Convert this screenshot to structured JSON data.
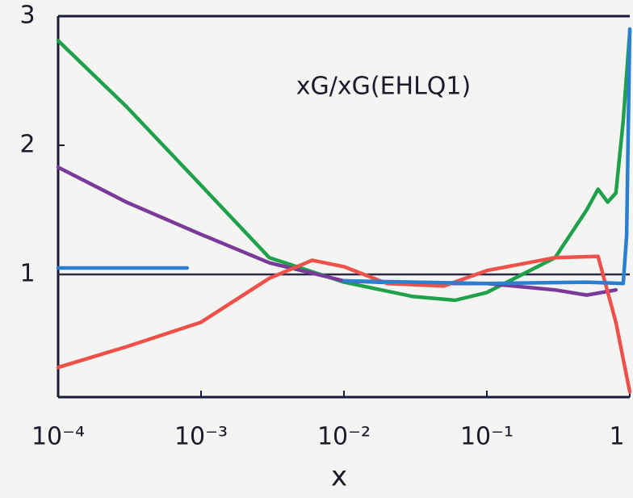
{
  "chart_data": {
    "type": "line",
    "title": "xG/xG(EHLQ1)",
    "x_label": "x",
    "xscale": "log",
    "xlim": [
      0.0001,
      1
    ],
    "ylim": [
      0,
      3
    ],
    "xticks": [
      {
        "value": 0.0001,
        "label": "10⁻⁴"
      },
      {
        "value": 0.001,
        "label": "10⁻³"
      },
      {
        "value": 0.01,
        "label": "10⁻²"
      },
      {
        "value": 0.1,
        "label": "10⁻¹"
      },
      1
    ],
    "yticks": [
      1,
      2,
      3
    ],
    "reference_line": 1,
    "series": [
      {
        "color": "#1fa04a",
        "x": [
          0.0001,
          0.0003,
          0.001,
          0.003,
          0.01,
          0.03,
          0.06,
          0.1,
          0.3,
          0.5,
          0.6,
          0.7,
          0.8,
          0.9,
          1
        ],
        "values": [
          2.81,
          2.3,
          1.69,
          1.13,
          0.94,
          0.83,
          0.8,
          0.86,
          1.13,
          1.5,
          1.66,
          1.56,
          1.63,
          2.19,
          2.88
        ]
      },
      {
        "color": "#7a3a9a",
        "x": [
          0.0001,
          0.0003,
          0.001,
          0.003,
          0.01,
          0.03,
          0.1,
          0.3,
          0.5,
          0.8
        ],
        "values": [
          1.83,
          1.56,
          1.31,
          1.09,
          0.95,
          0.93,
          0.93,
          0.88,
          0.84,
          0.88
        ]
      },
      {
        "color": "#f0504a",
        "x": [
          0.0001,
          0.0003,
          0.001,
          0.003,
          0.006,
          0.01,
          0.02,
          0.05,
          0.1,
          0.3,
          0.6,
          0.8,
          1
        ],
        "values": [
          0.28,
          0.44,
          0.63,
          0.97,
          1.11,
          1.06,
          0.93,
          0.91,
          1.03,
          1.13,
          1.14,
          0.63,
          0.09
        ]
      },
      {
        "color": "#2a7fd0",
        "x": [
          0.0001,
          0.0008,
          0.002,
          0.01,
          0.1,
          0.5,
          0.9,
          0.95,
          1
        ],
        "values": [
          1.05,
          1.05,
          null,
          0.95,
          0.93,
          0.94,
          0.93,
          1.3,
          2.9
        ]
      }
    ]
  }
}
